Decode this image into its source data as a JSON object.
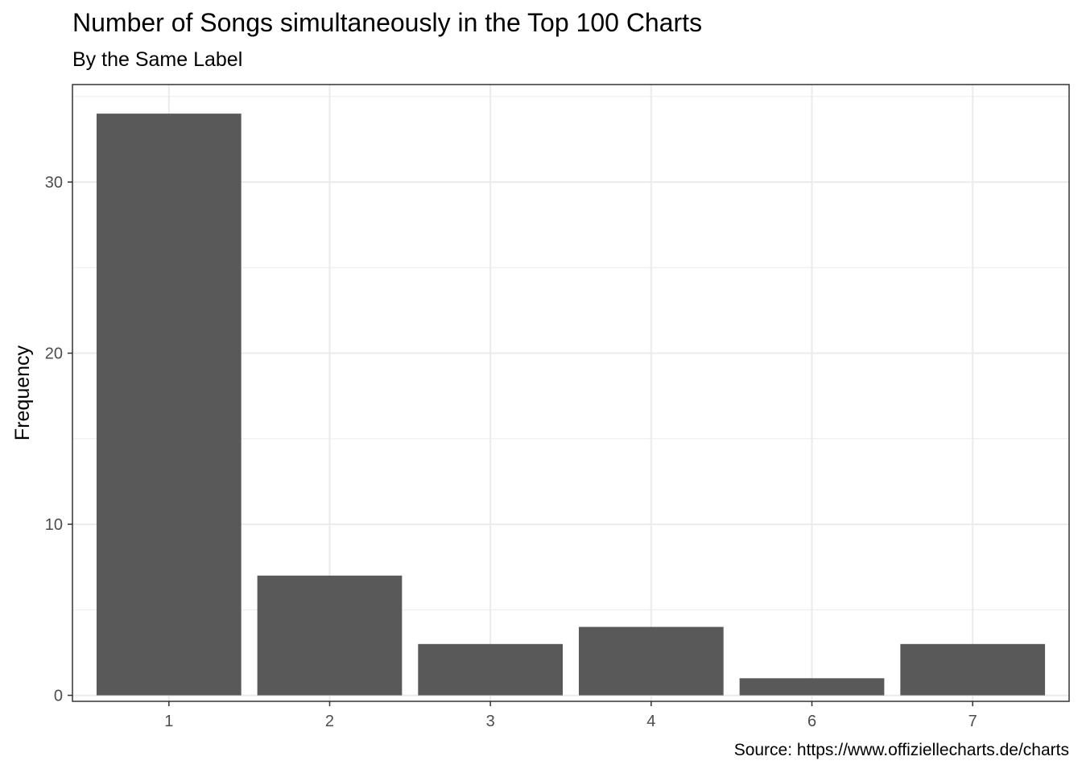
{
  "chart_data": {
    "type": "bar",
    "title": "Number of Songs simultaneously in the Top 100 Charts",
    "subtitle": "By the Same Label",
    "caption": "Source: https://www.offiziellecharts.de/charts",
    "xlabel": "",
    "ylabel": "Frequency",
    "categories": [
      "1",
      "2",
      "3",
      "4",
      "6",
      "7"
    ],
    "values": [
      34,
      7,
      3,
      4,
      1,
      3
    ],
    "ylim": [
      0,
      35
    ],
    "yticks": [
      0,
      10,
      20,
      30
    ],
    "bar_color": "#595959",
    "grid": true,
    "grid_color": "#ebebeb",
    "panel_border_color": "#333333",
    "legend": "none"
  }
}
